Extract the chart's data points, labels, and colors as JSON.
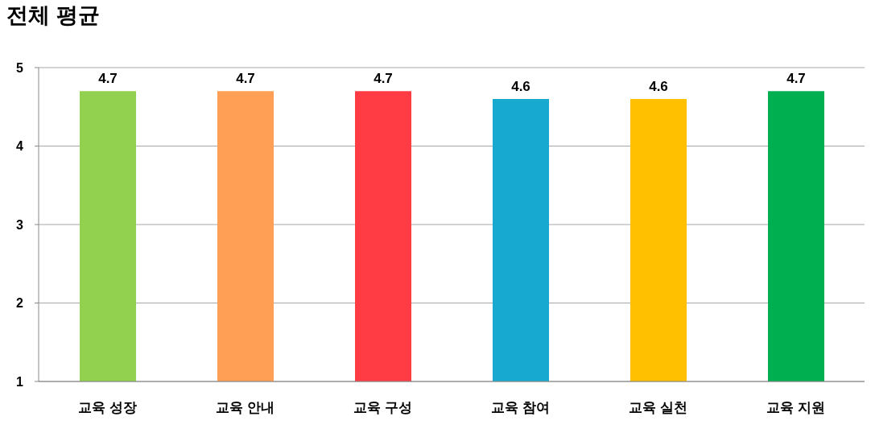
{
  "chart_data": {
    "type": "bar",
    "title": "전체 평균",
    "categories": [
      "교육 성장",
      "교육 안내",
      "교육 구성",
      "교육 참여",
      "교육 실천",
      "교육 지원"
    ],
    "values": [
      4.7,
      4.7,
      4.7,
      4.6,
      4.6,
      4.7
    ],
    "colors": [
      "#92d050",
      "#ff9f55",
      "#ff3b44",
      "#17a9cf",
      "#ffc000",
      "#00b050"
    ],
    "ylim": [
      1,
      5
    ],
    "yticks": [
      1,
      2,
      3,
      4,
      5
    ],
    "grid": "y",
    "data_labels": true
  }
}
